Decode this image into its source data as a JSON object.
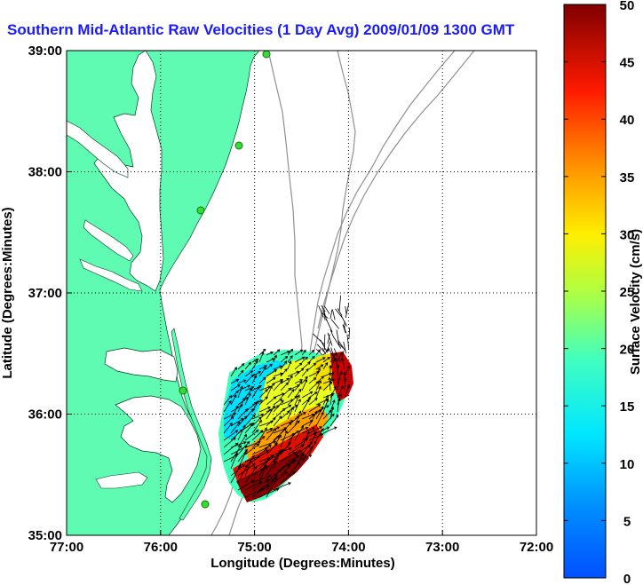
{
  "title": "Southern Mid-Atlantic Raw Velocities (1 Day Avg) 2009/01/09 1300 GMT",
  "xlabel": "Longitude (Degrees:Minutes)",
  "ylabel": "Latitude (Degrees:Minutes)",
  "xticks": [
    "77:00",
    "76:00",
    "75:00",
    "74:00",
    "73:00",
    "72:00"
  ],
  "yticks": [
    "39:00",
    "38:00",
    "37:00",
    "36:00",
    "35:00"
  ],
  "colorbar": {
    "label": "Surface Velocity (cm/s)",
    "ticks": [
      "50",
      "45",
      "40",
      "35",
      "30",
      "25",
      "20",
      "15",
      "10",
      "5",
      "0"
    ],
    "range": [
      0,
      50
    ],
    "colormap": "jet"
  },
  "colors": {
    "land": "#5ffbb2",
    "water": "#ffffff",
    "bathymetry": "#909090",
    "station": "#33dd33",
    "title": "#1a1aff"
  }
}
